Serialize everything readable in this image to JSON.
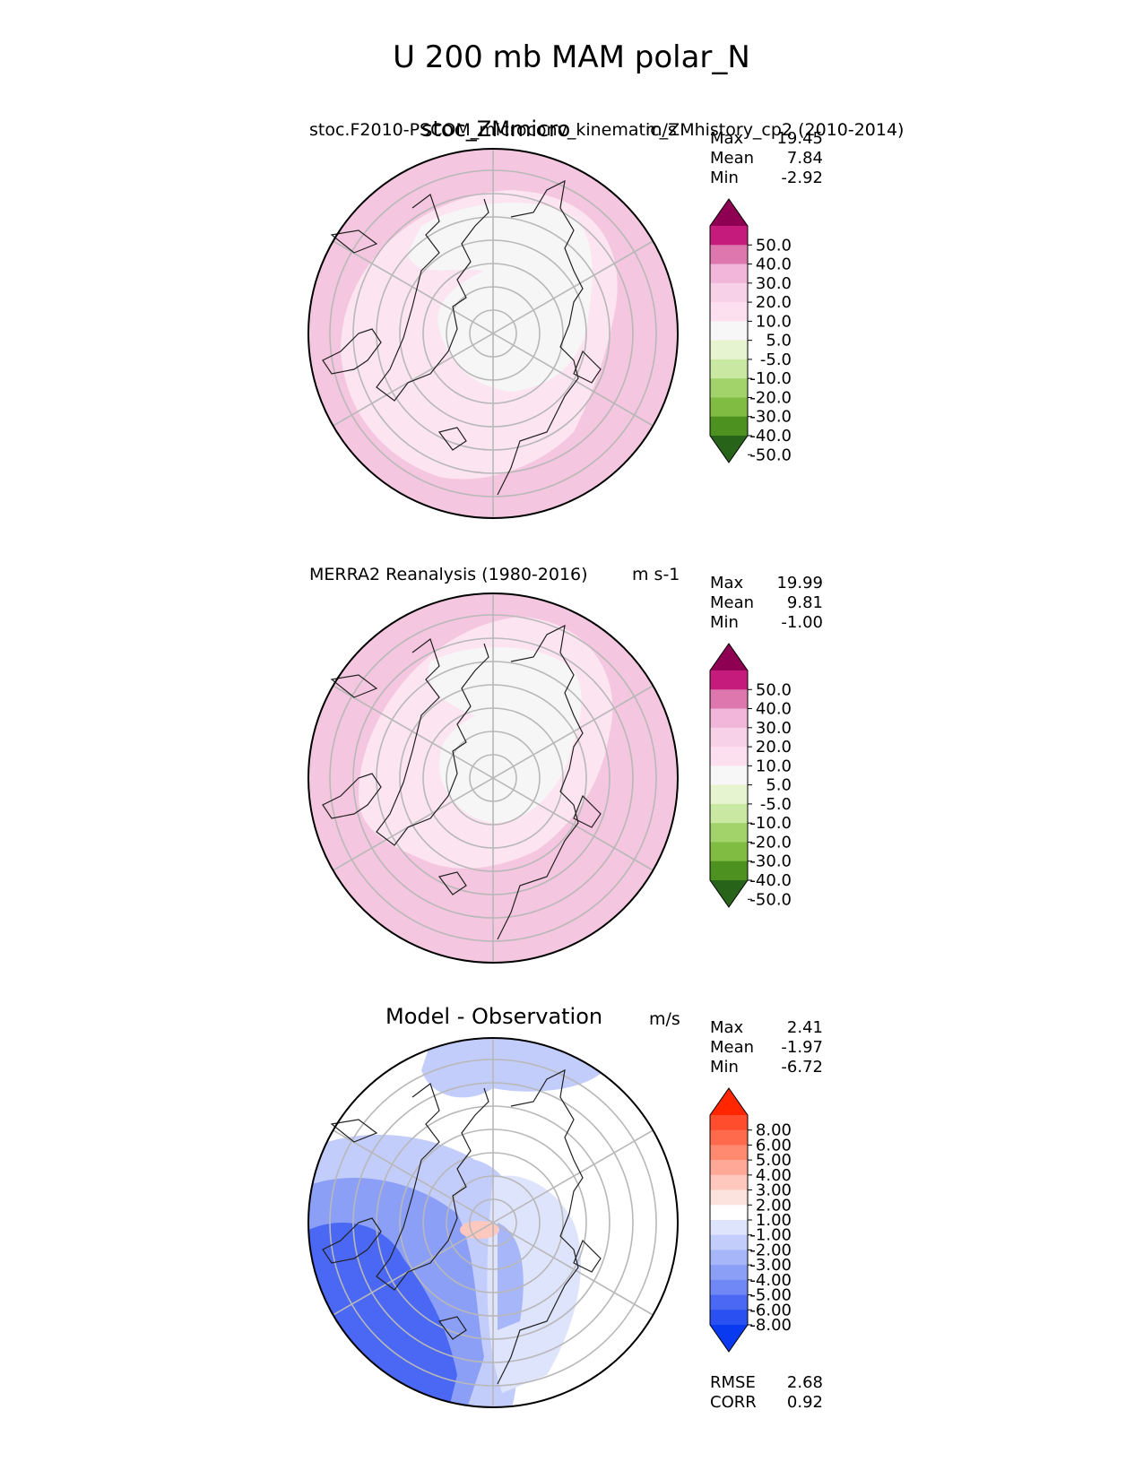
{
  "title": "U 200 mb MAM polar_N",
  "panels": [
    {
      "name": "test",
      "left_title": "stoc.F2010-PSCOM_microconv_kinematic_ZMhistory_cp2 (2010-2014)",
      "center_title": "stoc_ZMmicro",
      "units": "m/s",
      "stats": [
        {
          "label": "Max",
          "value": "19.45"
        },
        {
          "label": "Mean",
          "value": "7.84"
        },
        {
          "label": "Min",
          "value": "-2.92"
        }
      ],
      "colorbar": {
        "ticks": [
          "50.0",
          "40.0",
          "30.0",
          "20.0",
          "10.0",
          "5.0",
          "-5.0",
          "-10.0",
          "-20.0",
          "-30.0",
          "-40.0",
          "-50.0"
        ],
        "colors": [
          "#8e0152",
          "#c51b7d",
          "#de77ae",
          "#f1b6da",
          "#f7d1e7",
          "#fde0ef",
          "#f7f7f7",
          "#e6f5d0",
          "#c9e8a2",
          "#a1d36a",
          "#7fbc41",
          "#4d9221",
          "#276419"
        ]
      }
    },
    {
      "name": "ref",
      "left_title": "MERRA2 Reanalysis (1980-2016)",
      "center_title": "",
      "units": "m s-1",
      "stats": [
        {
          "label": "Max",
          "value": "19.99"
        },
        {
          "label": "Mean",
          "value": "9.81"
        },
        {
          "label": "Min",
          "value": "-1.00"
        }
      ],
      "colorbar": {
        "ticks": [
          "50.0",
          "40.0",
          "30.0",
          "20.0",
          "10.0",
          "5.0",
          "-5.0",
          "-10.0",
          "-20.0",
          "-30.0",
          "-40.0",
          "-50.0"
        ],
        "colors": [
          "#8e0152",
          "#c51b7d",
          "#de77ae",
          "#f1b6da",
          "#f7d1e7",
          "#fde0ef",
          "#f7f7f7",
          "#e6f5d0",
          "#c9e8a2",
          "#a1d36a",
          "#7fbc41",
          "#4d9221",
          "#276419"
        ]
      }
    },
    {
      "name": "diff",
      "left_title": "",
      "center_title": "Model - Observation",
      "units": "m/s",
      "stats": [
        {
          "label": "Max",
          "value": "2.41"
        },
        {
          "label": "Mean",
          "value": "-1.97"
        },
        {
          "label": "Min",
          "value": "-6.72"
        }
      ],
      "extra_stats": [
        {
          "label": "RMSE",
          "value": "2.68"
        },
        {
          "label": "CORR",
          "value": "0.92"
        }
      ],
      "colorbar": {
        "ticks": [
          "8.00",
          "6.00",
          "5.00",
          "4.00",
          "3.00",
          "2.00",
          "1.00",
          "-1.00",
          "-2.00",
          "-3.00",
          "-4.00",
          "-5.00",
          "-6.00",
          "-8.00"
        ],
        "colors": [
          "#ff2600",
          "#ff4d2e",
          "#ff6a4d",
          "#ff8a70",
          "#ffa898",
          "#ffc8be",
          "#fde3de",
          "#ffffff",
          "#dfe4fd",
          "#c3cdfb",
          "#a7b6f9",
          "#8b9ff7",
          "#6f88f5",
          "#4a68f3",
          "#2a50f1",
          "#0a3af0"
        ]
      }
    }
  ],
  "chart_data": [
    {
      "type": "heatmap",
      "title": "stoc_ZMmicro",
      "projection": "north polar stereographic",
      "variable": "U 200 mb",
      "season": "MAM",
      "units": "m/s",
      "max": 19.45,
      "mean": 7.84,
      "min": -2.92
    },
    {
      "type": "heatmap",
      "title": "MERRA2 Reanalysis (1980-2016)",
      "projection": "north polar stereographic",
      "units": "m s-1",
      "max": 19.99,
      "mean": 9.81,
      "min": -1.0
    },
    {
      "type": "heatmap",
      "title": "Model - Observation",
      "projection": "north polar stereographic",
      "units": "m/s",
      "max": 2.41,
      "mean": -1.97,
      "min": -6.72,
      "rmse": 2.68,
      "corr": 0.92
    }
  ]
}
